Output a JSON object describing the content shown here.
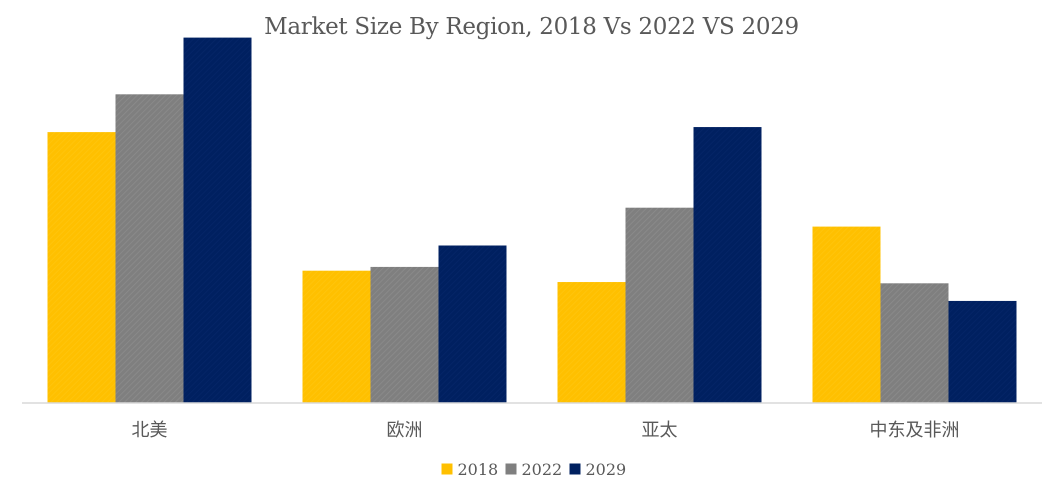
{
  "chart_data": {
    "type": "bar",
    "title": "Market Size By Region, 2018 Vs 2022 VS 2029",
    "xlabel": "",
    "ylabel": "",
    "categories": [
      "北美",
      "欧洲",
      "亚太",
      "中东及非洲"
    ],
    "series": [
      {
        "name": "2018",
        "color": "#FFC000",
        "values": [
          215,
          105,
          96,
          140
        ]
      },
      {
        "name": "2022",
        "color": "#7F7F7F",
        "values": [
          245,
          108,
          155,
          95
        ]
      },
      {
        "name": "2029",
        "color": "#002060",
        "values": [
          290,
          125,
          219,
          81
        ]
      }
    ],
    "ylim": [
      0,
      300
    ],
    "grid": false,
    "y_axis_visible": false,
    "legend_position": "bottom",
    "pattern_on_bars": true
  }
}
